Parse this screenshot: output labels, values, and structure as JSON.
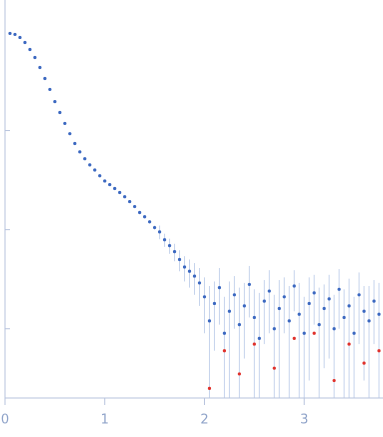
{
  "chart_data": {
    "type": "scatter",
    "log_y": true,
    "xlim": [
      0,
      3.79
    ],
    "xticks": [
      0,
      1,
      2,
      3
    ],
    "ylim": [
      0.0002,
      1.5
    ],
    "yticks": [
      0.001,
      0.01,
      0.1
    ],
    "axis_color": "#b7c3dd",
    "error_color": "#c5d3ec",
    "series": [
      {
        "color": "#3a67c0",
        "x": [
          0.05,
          0.1,
          0.15,
          0.2,
          0.25,
          0.3,
          0.35,
          0.4,
          0.45,
          0.5,
          0.55,
          0.6,
          0.65,
          0.7,
          0.75,
          0.8,
          0.85,
          0.9,
          0.95,
          1.0,
          1.05,
          1.1,
          1.15,
          1.2,
          1.25,
          1.3,
          1.35,
          1.4,
          1.45,
          1.5,
          1.55,
          1.6,
          1.65,
          1.7,
          1.75,
          1.8,
          1.85,
          1.9,
          1.95,
          2.0,
          2.05,
          2.1,
          2.15,
          2.2,
          2.25,
          2.3,
          2.35,
          2.4,
          2.45,
          2.5,
          2.55,
          2.6,
          2.65,
          2.7,
          2.75,
          2.8,
          2.85,
          2.9,
          2.95,
          3.0,
          3.05,
          3.1,
          3.15,
          3.2,
          3.25,
          3.3,
          3.35,
          3.4,
          3.45,
          3.5,
          3.55,
          3.6,
          3.65,
          3.7,
          3.75
        ],
        "values": [
          0.955,
          0.933,
          0.87,
          0.774,
          0.658,
          0.546,
          0.433,
          0.335,
          0.26,
          0.196,
          0.152,
          0.118,
          0.093,
          0.074,
          0.061,
          0.052,
          0.045,
          0.04,
          0.035,
          0.031,
          0.0285,
          0.026,
          0.0237,
          0.0215,
          0.0192,
          0.0171,
          0.0149,
          0.0135,
          0.012,
          0.0105,
          0.0095,
          0.0079,
          0.0069,
          0.006,
          0.005,
          0.0042,
          0.0038,
          0.0034,
          0.0029,
          0.0021,
          0.0012,
          0.0018,
          0.0026,
          0.0009,
          0.0015,
          0.0022,
          0.0011,
          0.0017,
          0.0028,
          0.0013,
          0.0008,
          0.0019,
          0.0024,
          0.001,
          0.0016,
          0.0021,
          0.0012,
          0.0027,
          0.0014,
          0.0009,
          0.0018,
          0.0023,
          0.0011,
          0.0016,
          0.002,
          0.001,
          0.0025,
          0.0013,
          0.0017,
          0.0009,
          0.0022,
          0.0015,
          0.0012,
          0.0019,
          0.0014
        ],
        "errors": [
          0.005,
          0.005,
          0.005,
          0.004,
          0.004,
          0.004,
          0.003,
          0.003,
          0.003,
          0.002,
          0.002,
          0.002,
          0.002,
          0.0015,
          0.0015,
          0.0012,
          0.0012,
          0.001,
          0.001,
          0.001,
          0.0008,
          0.0008,
          0.0007,
          0.0007,
          0.0006,
          0.0006,
          0.0006,
          0.0005,
          0.0005,
          0.0005,
          0.0015,
          0.0012,
          0.0012,
          0.0012,
          0.0012,
          0.0012,
          0.0012,
          0.0012,
          0.0012,
          0.0012,
          0.0015,
          0.0012,
          0.0015,
          0.0012,
          0.0015,
          0.0012,
          0.0015,
          0.0012,
          0.0015,
          0.0012,
          0.0015,
          0.0012,
          0.0015,
          0.0012,
          0.0015,
          0.0012,
          0.0015,
          0.0012,
          0.0015,
          0.0012,
          0.0015,
          0.0012,
          0.0015,
          0.0012,
          0.0015,
          0.0012,
          0.0015,
          0.0012,
          0.0015,
          0.0012,
          0.0015,
          0.0012,
          0.0015,
          0.0012,
          0.0015
        ]
      },
      {
        "color": "#e0302a",
        "x": [
          2.05,
          2.2,
          2.35,
          2.5,
          2.7,
          2.9,
          3.1,
          3.3,
          3.45,
          3.6,
          3.75
        ],
        "values": [
          0.00025,
          0.0006,
          0.00035,
          0.0007,
          0.0004,
          0.0008,
          0.0009,
          0.0003,
          0.0007,
          0.00045,
          0.0006
        ]
      }
    ]
  }
}
